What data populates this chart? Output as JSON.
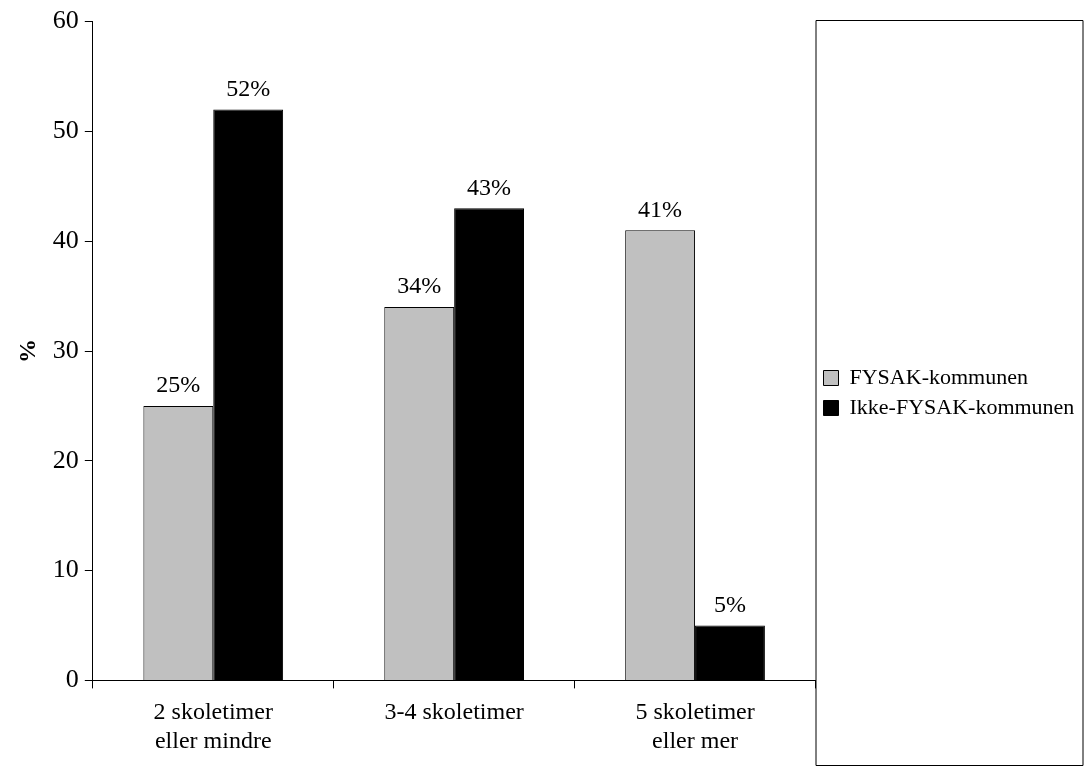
{
  "chart_data": {
    "type": "bar",
    "ylabel": "%",
    "categories": [
      "2 skoletimer\neller mindre",
      "3-4 skoletimer",
      "5 skoletimer\neller mer"
    ],
    "series": [
      {
        "name": "FYSAK-kommunen",
        "color": "#c0c0c0",
        "values": [
          25,
          34,
          41
        ],
        "value_labels": [
          "25%",
          "34%",
          "41%"
        ]
      },
      {
        "name": "Ikke-FYSAK-kommunen",
        "color": "#000000",
        "values": [
          52,
          43,
          5
        ],
        "value_labels": [
          "52%",
          "43%",
          "5%"
        ]
      }
    ],
    "ylim": [
      0,
      60
    ],
    "yticks": [
      0,
      10,
      20,
      30,
      40,
      50,
      60
    ],
    "grid": false,
    "legend": "right"
  }
}
